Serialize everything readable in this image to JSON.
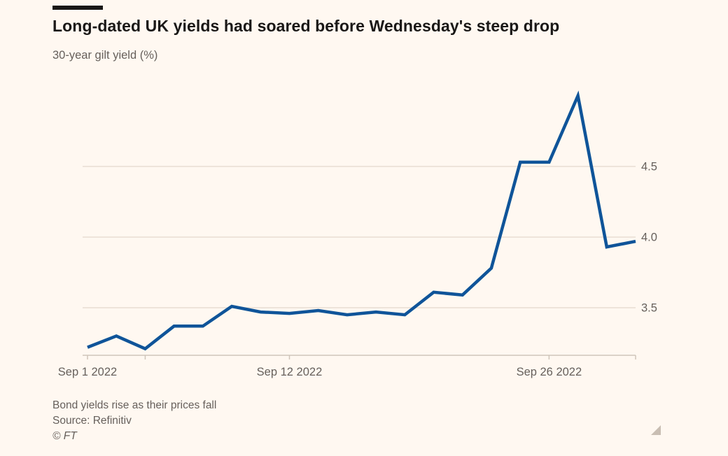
{
  "header": {
    "title": "Long-dated UK yields had soared before Wednesday's steep drop",
    "subtitle": "30-year gilt yield (%)"
  },
  "footer": {
    "note": "Bond yields rise as their prices fall",
    "source": "Source: Refinitiv",
    "copyright": "© FT"
  },
  "chart_data": {
    "type": "line",
    "title": "Long-dated UK yields had soared before Wednesday's steep drop",
    "subtitle": "30-year gilt yield (%)",
    "series_name": "30-year gilt yield (%)",
    "x": [
      "Sep 1 2022",
      "Sep 2 2022",
      "Sep 5 2022",
      "Sep 6 2022",
      "Sep 7 2022",
      "Sep 8 2022",
      "Sep 9 2022",
      "Sep 12 2022",
      "Sep 13 2022",
      "Sep 14 2022",
      "Sep 15 2022",
      "Sep 16 2022",
      "Sep 20 2022",
      "Sep 21 2022",
      "Sep 22 2022",
      "Sep 23 2022",
      "Sep 26 2022",
      "Sep 27 2022",
      "Sep 28 2022",
      "Sep 29 2022"
    ],
    "values": [
      3.22,
      3.3,
      3.21,
      3.37,
      3.37,
      3.51,
      3.47,
      3.46,
      3.48,
      3.45,
      3.47,
      3.45,
      3.61,
      3.59,
      3.78,
      4.53,
      4.53,
      5.0,
      3.93,
      3.97
    ],
    "y_ticks": [
      3.5,
      4.0,
      4.5
    ],
    "ylim": [
      3.15,
      5.05
    ],
    "x_tick_indices": [
      0,
      2,
      7,
      16,
      19
    ],
    "x_tick_labels": [
      {
        "index": 0,
        "label": "Sep 1 2022"
      },
      {
        "index": 7,
        "label": "Sep 12 2022"
      },
      {
        "index": 16,
        "label": "Sep 26 2022"
      }
    ],
    "grid": "horizontal",
    "legend": "none",
    "line_color": "#0F5499",
    "grid_color": "#e8ddd2",
    "axis_color": "#cfc5ba",
    "text_color": "#66605C",
    "background": "#FFF8F1",
    "annotations": []
  }
}
